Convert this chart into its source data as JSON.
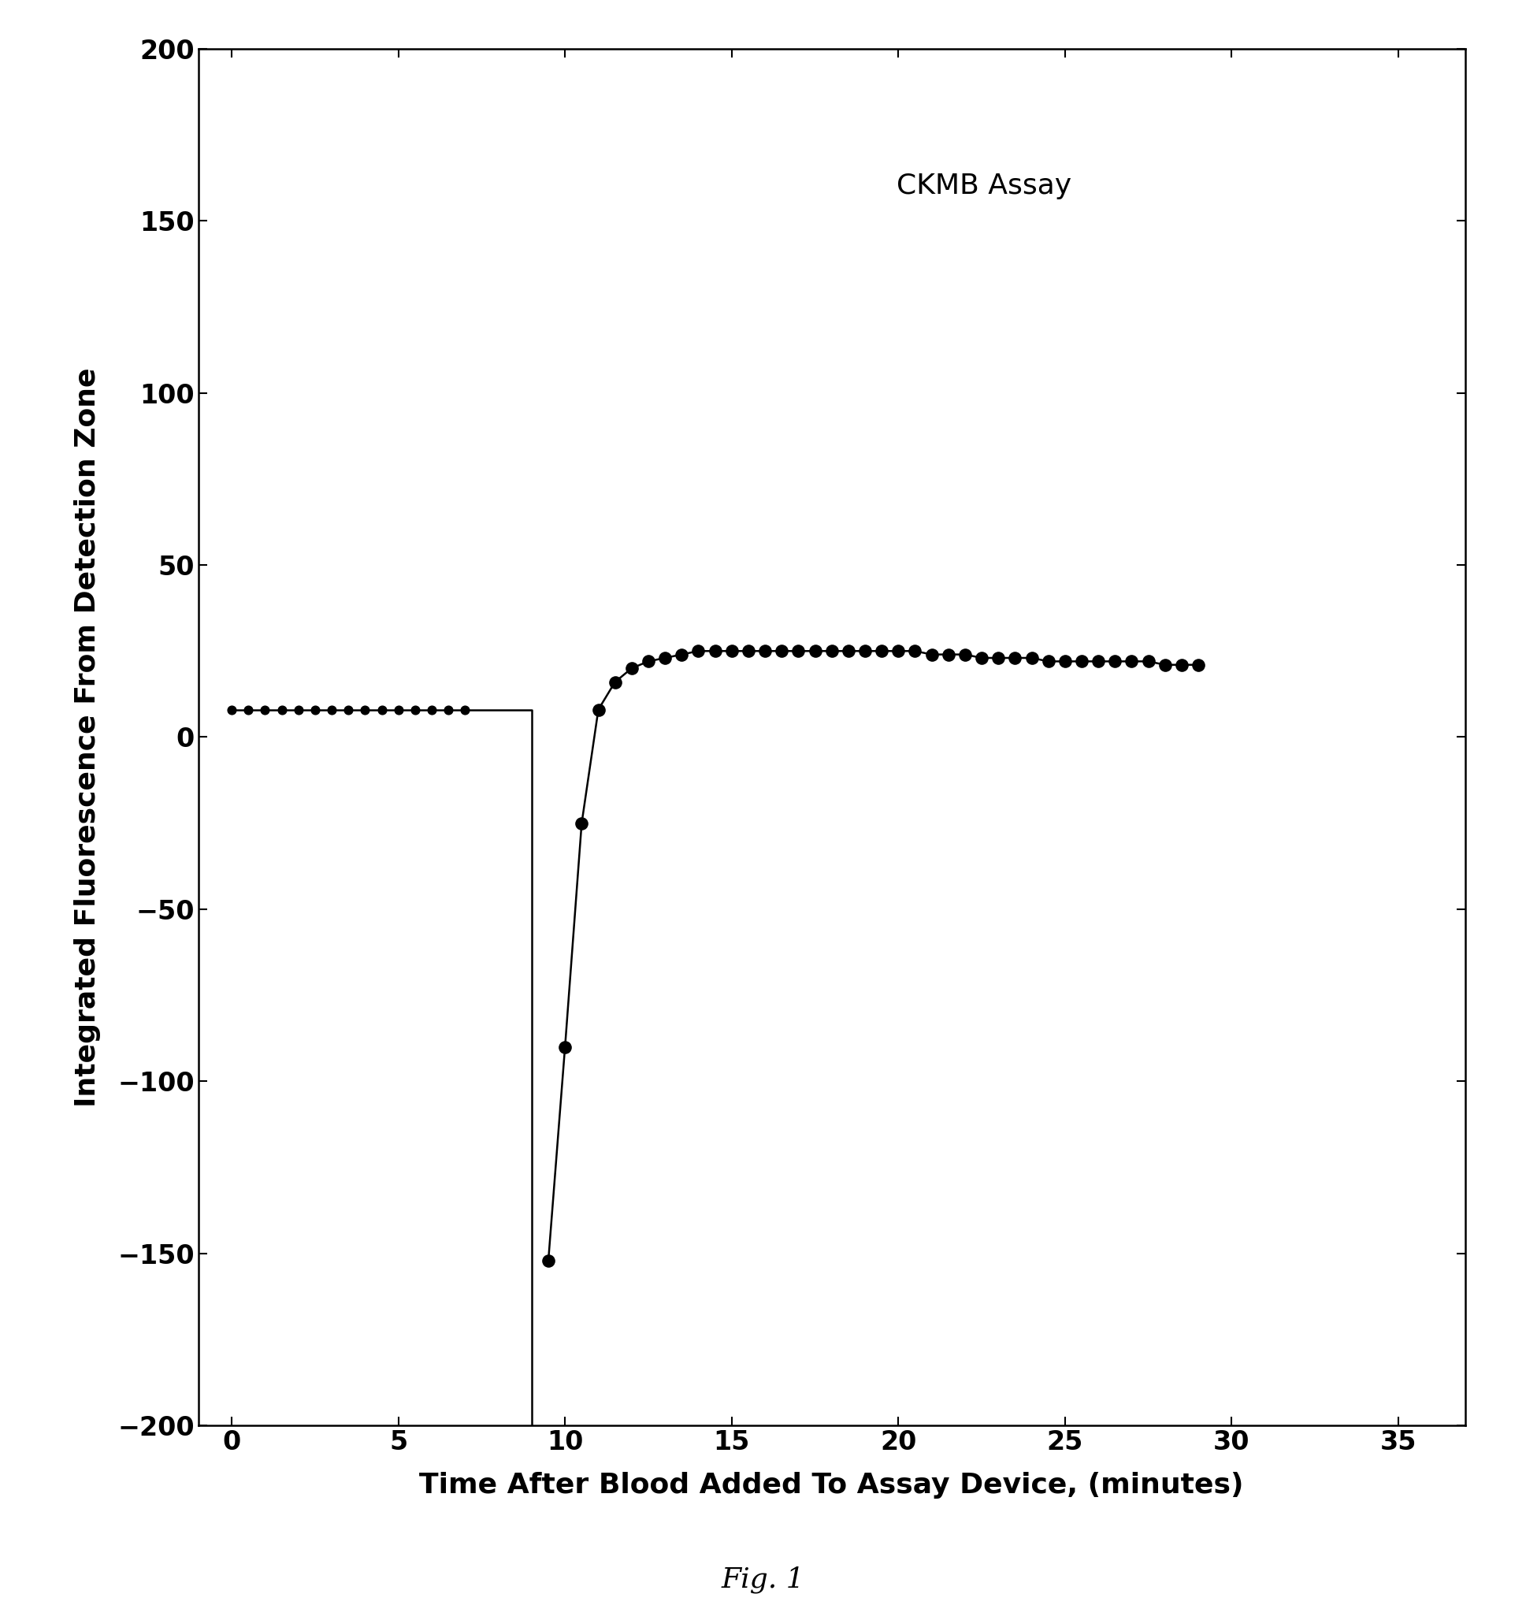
{
  "title": "CKMB Assay",
  "xlabel": "Time After Blood Added To Assay Device, (minutes)",
  "ylabel": "Integrated Fluorescence From Detection Zone",
  "fig_label": "Fig. 1",
  "xlim": [
    -1,
    37
  ],
  "ylim": [
    -200,
    200
  ],
  "xticks": [
    0,
    5,
    10,
    15,
    20,
    25,
    30,
    35
  ],
  "yticks": [
    -200,
    -150,
    -100,
    -50,
    0,
    50,
    100,
    150,
    200
  ],
  "segment1_x": [
    0,
    0.5,
    1,
    1.5,
    2,
    2.5,
    3,
    3.5,
    4,
    4.5,
    5,
    5.5,
    6,
    6.5,
    7
  ],
  "segment1_y": [
    8,
    8,
    8,
    8,
    8,
    8,
    8,
    8,
    8,
    8,
    8,
    8,
    8,
    8,
    8
  ],
  "vertical_line_x": [
    7,
    9,
    9
  ],
  "vertical_line_y": [
    8,
    8,
    -200
  ],
  "segment2_x": [
    9.5,
    10,
    10.5,
    11,
    11.5,
    12,
    12.5,
    13,
    13.5,
    14,
    14.5,
    15,
    15.5,
    16,
    16.5,
    17,
    17.5,
    18,
    18.5,
    19,
    19.5,
    20,
    20.5,
    21,
    21.5,
    22,
    22.5,
    23,
    23.5,
    24,
    24.5,
    25,
    25.5,
    26,
    26.5,
    27,
    27.5,
    28,
    28.5,
    29
  ],
  "segment2_y": [
    -152,
    -90,
    -25,
    8,
    16,
    20,
    22,
    23,
    24,
    25,
    25,
    25,
    25,
    25,
    25,
    25,
    25,
    25,
    25,
    25,
    25,
    25,
    25,
    24,
    24,
    24,
    23,
    23,
    23,
    23,
    22,
    22,
    22,
    22,
    22,
    22,
    22,
    21,
    21,
    21
  ],
  "dot_x1": [
    0,
    0.5,
    1,
    1.5,
    2,
    2.5,
    3,
    3.5,
    4,
    4.5,
    5,
    5.5,
    6,
    6.5,
    7
  ],
  "dot_y1": [
    8,
    8,
    8,
    8,
    8,
    8,
    8,
    8,
    8,
    8,
    8,
    8,
    8,
    8,
    8
  ],
  "dot_x2": [
    9.5,
    10,
    10.5,
    11,
    11.5,
    12,
    12.5,
    13,
    13.5,
    14,
    14.5,
    15,
    15.5,
    16,
    16.5,
    17,
    17.5,
    18,
    18.5,
    19,
    19.5,
    20,
    20.5,
    21,
    21.5,
    22,
    22.5,
    23,
    23.5,
    24,
    24.5,
    25,
    25.5,
    26,
    26.5,
    27,
    27.5,
    28,
    28.5,
    29
  ],
  "dot_y2": [
    -152,
    -90,
    -25,
    8,
    16,
    20,
    22,
    23,
    24,
    25,
    25,
    25,
    25,
    25,
    25,
    25,
    25,
    25,
    25,
    25,
    25,
    25,
    25,
    24,
    24,
    24,
    23,
    23,
    23,
    23,
    22,
    22,
    22,
    22,
    22,
    22,
    22,
    21,
    21,
    21
  ],
  "line_color": "#000000",
  "dot_color": "#000000",
  "background_color": "#ffffff",
  "title_fontsize": 26,
  "label_fontsize": 26,
  "tick_fontsize": 24,
  "fig_label_fontsize": 26,
  "dot_size1": 60,
  "dot_size2": 120,
  "linewidth": 1.8
}
